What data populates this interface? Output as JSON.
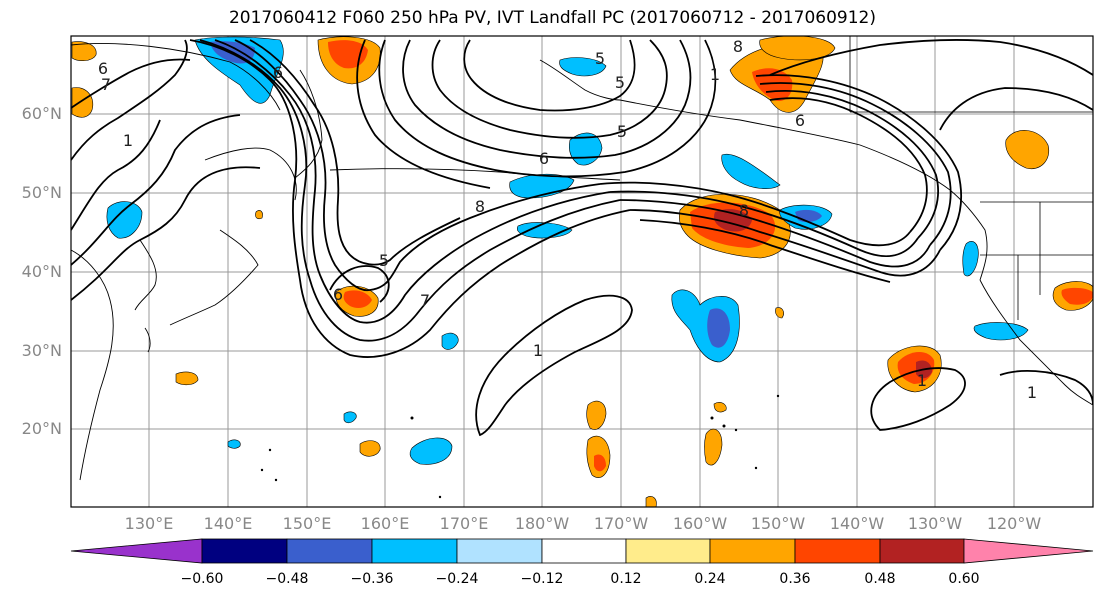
{
  "title": "2017060412 F060 250 hPa PV, IVT Landfall PC (2017060712 - 2017060912)",
  "lat_labels": [
    "60°N",
    "50°N",
    "40°N",
    "30°N",
    "20°N"
  ],
  "lon_labels": [
    "130°E",
    "140°E",
    "150°E",
    "160°E",
    "170°E",
    "180°W",
    "170°W",
    "160°W",
    "150°W",
    "140°W",
    "130°W",
    "120°W"
  ],
  "colorbar": {
    "colors": [
      "#9932CC",
      "#000080",
      "#3A5FCD",
      "#00BFFF",
      "#B0E2FF",
      "#FFFFFF",
      "#FFEC8B",
      "#FFA500",
      "#FF4500",
      "#B22222",
      "#FF82AB"
    ],
    "tick_labels": [
      "−0.60",
      "−0.48",
      "−0.36",
      "−0.24",
      "−0.12",
      "0.12",
      "0.24",
      "0.36",
      "0.48",
      "0.60"
    ]
  },
  "contour_labels": [
    "6",
    "7",
    "1",
    "6",
    "8",
    "1",
    "8",
    "6",
    "6",
    "5",
    "5",
    "5",
    "5",
    "6",
    "7",
    "8",
    "1",
    "1",
    "1"
  ]
}
